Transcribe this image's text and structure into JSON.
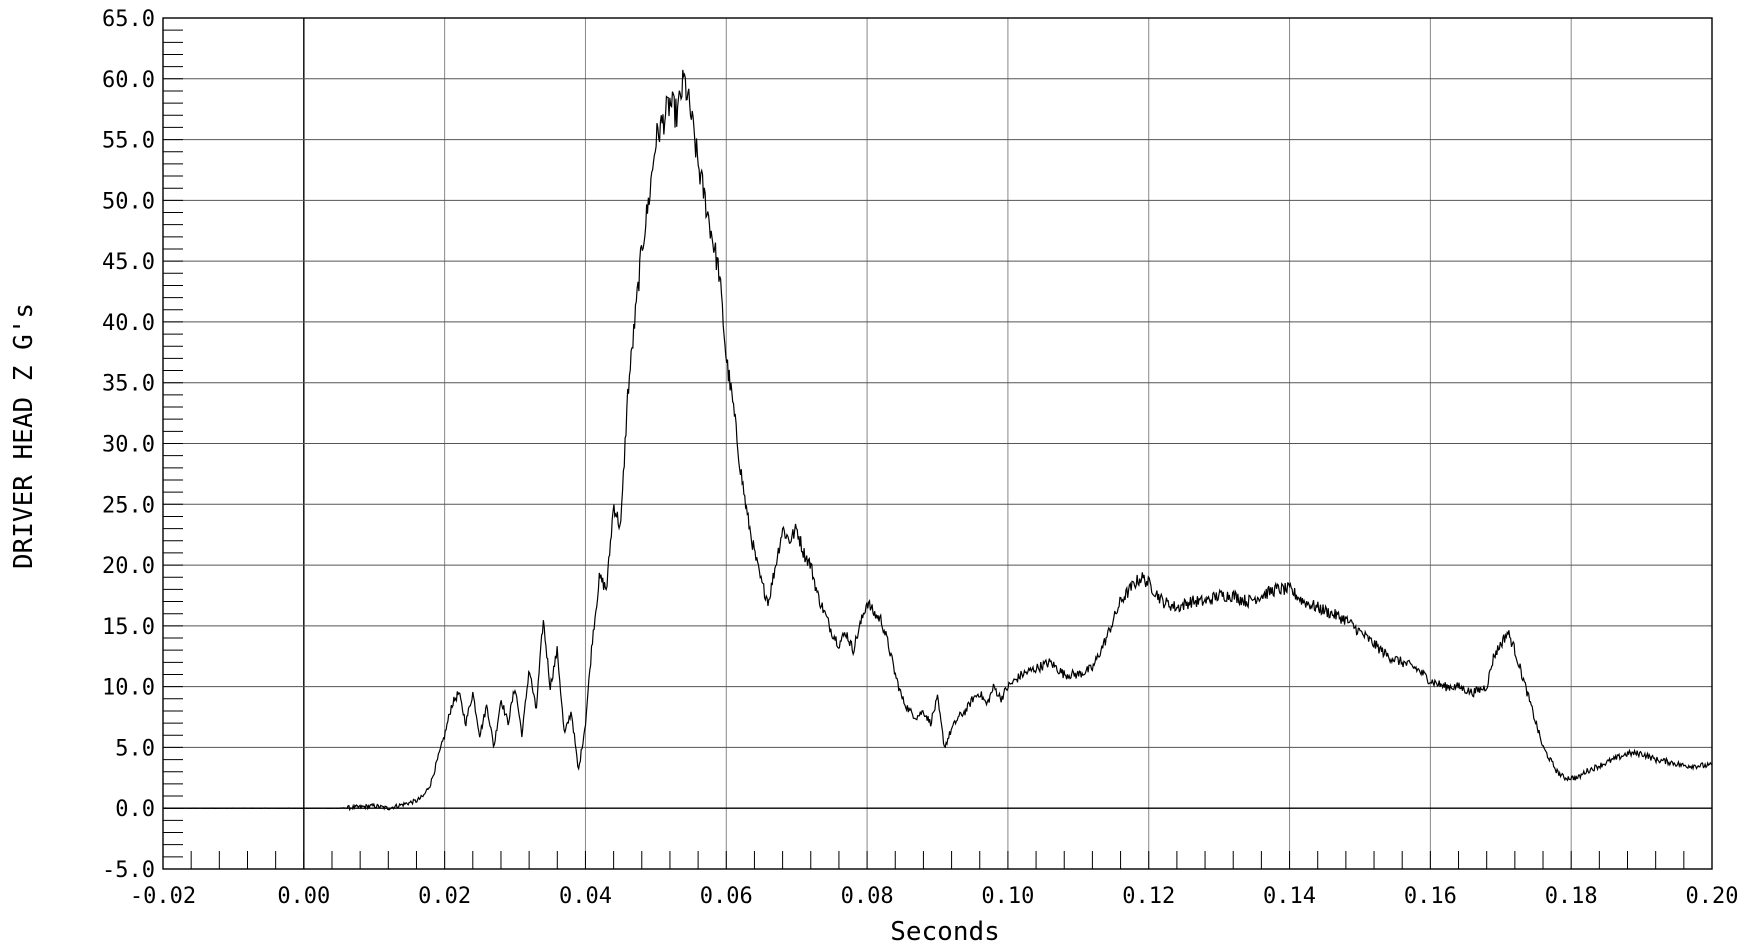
{
  "chart_data": {
    "type": "line",
    "title": "",
    "xlabel": "Seconds",
    "ylabel": "DRIVER HEAD Z G's",
    "xlim": [
      -0.02,
      0.2
    ],
    "ylim": [
      -5.0,
      65.0
    ],
    "grid": true,
    "legend": "none",
    "x_ticks": [
      "-0.02",
      "0.00",
      "0.02",
      "0.04",
      "0.06",
      "0.08",
      "0.10",
      "0.12",
      "0.14",
      "0.16",
      "0.18",
      "0.20"
    ],
    "y_ticks": [
      "-5.0",
      "0.0",
      "5.0",
      "10.0",
      "15.0",
      "20.0",
      "25.0",
      "30.0",
      "35.0",
      "40.0",
      "45.0",
      "50.0",
      "55.0",
      "60.0",
      "65.0"
    ],
    "line_color": "#000000",
    "series": [
      {
        "x": [
          -0.02,
          0.0,
          0.005,
          0.008,
          0.01,
          0.012,
          0.014,
          0.016,
          0.017,
          0.018,
          0.019,
          0.02,
          0.021,
          0.022,
          0.023,
          0.024,
          0.025,
          0.026,
          0.027,
          0.028,
          0.029,
          0.03,
          0.031,
          0.032,
          0.033,
          0.034,
          0.035,
          0.036,
          0.037,
          0.038,
          0.039,
          0.04,
          0.041,
          0.042,
          0.043,
          0.044,
          0.045,
          0.046,
          0.047,
          0.048,
          0.049,
          0.05,
          0.051,
          0.052,
          0.053,
          0.054,
          0.055,
          0.056,
          0.057,
          0.058,
          0.059,
          0.06,
          0.061,
          0.062,
          0.063,
          0.064,
          0.065,
          0.066,
          0.067,
          0.068,
          0.069,
          0.07,
          0.071,
          0.072,
          0.073,
          0.074,
          0.075,
          0.076,
          0.077,
          0.078,
          0.079,
          0.08,
          0.081,
          0.082,
          0.083,
          0.084,
          0.085,
          0.086,
          0.087,
          0.088,
          0.089,
          0.09,
          0.091,
          0.092,
          0.093,
          0.094,
          0.095,
          0.096,
          0.097,
          0.098,
          0.099,
          0.1,
          0.102,
          0.104,
          0.106,
          0.108,
          0.11,
          0.112,
          0.114,
          0.116,
          0.118,
          0.119,
          0.12,
          0.122,
          0.124,
          0.126,
          0.128,
          0.13,
          0.132,
          0.134,
          0.136,
          0.138,
          0.14,
          0.142,
          0.144,
          0.146,
          0.148,
          0.15,
          0.152,
          0.154,
          0.156,
          0.158,
          0.16,
          0.162,
          0.164,
          0.166,
          0.168,
          0.169,
          0.17,
          0.171,
          0.172,
          0.174,
          0.176,
          0.178,
          0.179,
          0.18,
          0.181,
          0.182,
          0.184,
          0.186,
          0.188,
          0.19,
          0.192,
          0.194,
          0.196,
          0.198,
          0.2
        ],
        "y": [
          0.0,
          0.0,
          0.0,
          0.1,
          0.2,
          0.0,
          0.3,
          0.6,
          1.0,
          2.0,
          4.0,
          6.0,
          8.5,
          9.5,
          7.0,
          9.5,
          6.0,
          8.5,
          5.0,
          9.0,
          7.0,
          10.0,
          6.0,
          11.5,
          8.0,
          15.5,
          10.0,
          13.0,
          6.0,
          8.0,
          3.0,
          7.0,
          14.0,
          19.0,
          18.0,
          25.0,
          23.0,
          34.0,
          40.0,
          46.0,
          50.0,
          55.0,
          56.5,
          58.0,
          57.0,
          60.0,
          57.0,
          53.0,
          50.0,
          47.0,
          44.0,
          37.0,
          33.0,
          28.0,
          24.0,
          21.0,
          18.5,
          17.0,
          20.0,
          23.0,
          22.0,
          23.0,
          21.0,
          20.0,
          17.5,
          16.0,
          14.5,
          13.5,
          14.5,
          13.0,
          15.0,
          17.0,
          16.0,
          15.5,
          13.5,
          11.0,
          9.0,
          8.0,
          7.5,
          8.0,
          7.0,
          9.0,
          5.0,
          6.5,
          7.5,
          8.0,
          9.0,
          9.5,
          8.5,
          10.0,
          9.0,
          10.0,
          11.0,
          11.5,
          12.0,
          11.0,
          11.0,
          11.5,
          14.0,
          17.0,
          18.5,
          19.0,
          18.5,
          17.0,
          16.5,
          17.0,
          17.0,
          17.5,
          17.5,
          17.0,
          17.5,
          18.0,
          18.0,
          17.0,
          16.5,
          16.0,
          15.5,
          14.5,
          13.5,
          12.5,
          12.0,
          11.5,
          10.5,
          10.0,
          10.0,
          9.5,
          10.0,
          12.5,
          13.5,
          14.5,
          13.0,
          9.0,
          5.0,
          3.0,
          2.5,
          2.5,
          2.5,
          3.0,
          3.5,
          4.0,
          4.5,
          4.5,
          4.0,
          3.8,
          3.5,
          3.5,
          3.5
        ]
      }
    ]
  }
}
